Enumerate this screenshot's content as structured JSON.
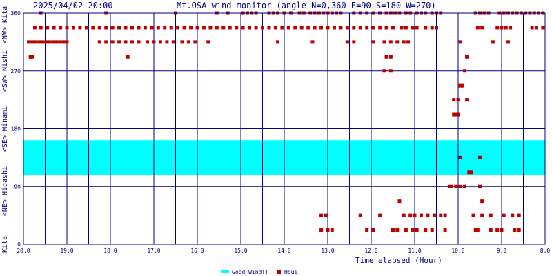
{
  "chart_data": {
    "type": "scatter",
    "title": "2025/04/02 20:00",
    "subtitle": "Mt.OSA wind monitor (angle N=0,360 E=90 S=180 W=270)",
    "xlabel": "Time elapsed (Hour)",
    "ylabel": "",
    "xlim": [
      20,
      8
    ],
    "ylim": [
      0,
      360
    ],
    "x_ticks": [
      "20:0",
      "19:0",
      "18:0",
      "17:0",
      "16:0",
      "15:0",
      "14:0",
      "13:0",
      "12:0",
      "11:0",
      "10:0",
      "9:0",
      "8:0"
    ],
    "y_ticks": [
      "0",
      "90",
      "180",
      "270",
      "360"
    ],
    "y_band_labels": [
      "Kita",
      "<NE> Higashi",
      "<SE> Minami",
      "<SW> Nishi",
      "<NW> Kita"
    ],
    "grid": true,
    "legend_position": "bottom-center",
    "colors": {
      "good_wind": "#00ffff",
      "houi": "#bb0000",
      "axis": "#000080",
      "text": "#000080"
    },
    "good_wind_band": [
      108,
      162
    ],
    "series": [
      {
        "name": "Good Wind!!",
        "kind": "band"
      },
      {
        "name": "Houi",
        "kind": "points",
        "points": [
          [
            19.88,
            315
          ],
          [
            19.8,
            315
          ],
          [
            19.72,
            315
          ],
          [
            19.64,
            315
          ],
          [
            19.56,
            315
          ],
          [
            19.48,
            315
          ],
          [
            19.4,
            315
          ],
          [
            19.32,
            315
          ],
          [
            19.24,
            315
          ],
          [
            19.16,
            315
          ],
          [
            19.08,
            315
          ],
          [
            19.0,
            315
          ],
          [
            19.84,
            292
          ],
          [
            19.8,
            292
          ],
          [
            19.74,
            337.5
          ],
          [
            19.6,
            337.5
          ],
          [
            19.45,
            337.5
          ],
          [
            19.3,
            337.5
          ],
          [
            19.15,
            337.5
          ],
          [
            19.0,
            337.5
          ],
          [
            18.85,
            337.5
          ],
          [
            18.7,
            337.5
          ],
          [
            18.55,
            337.5
          ],
          [
            18.4,
            337.5
          ],
          [
            18.25,
            337.5
          ],
          [
            18.1,
            337.5
          ],
          [
            17.95,
            337.5
          ],
          [
            17.8,
            337.5
          ],
          [
            17.65,
            337.5
          ],
          [
            17.5,
            337.5
          ],
          [
            17.35,
            337.5
          ],
          [
            17.2,
            337.5
          ],
          [
            17.05,
            337.5
          ],
          [
            16.9,
            337.5
          ],
          [
            16.75,
            337.5
          ],
          [
            16.6,
            337.5
          ],
          [
            16.45,
            337.5
          ],
          [
            16.3,
            337.5
          ],
          [
            16.15,
            337.5
          ],
          [
            16.0,
            337.5
          ],
          [
            15.85,
            337.5
          ],
          [
            15.7,
            337.5
          ],
          [
            15.55,
            337.5
          ],
          [
            15.4,
            337.5
          ],
          [
            15.25,
            337.5
          ],
          [
            15.1,
            337.5
          ],
          [
            14.95,
            337.5
          ],
          [
            14.8,
            337.5
          ],
          [
            14.65,
            337.5
          ],
          [
            14.5,
            337.5
          ],
          [
            14.35,
            337.5
          ],
          [
            14.2,
            337.5
          ],
          [
            14.05,
            337.5
          ],
          [
            13.9,
            337.5
          ],
          [
            13.75,
            337.5
          ],
          [
            13.6,
            337.5
          ],
          [
            13.45,
            337.5
          ],
          [
            13.3,
            337.5
          ],
          [
            13.15,
            337.5
          ],
          [
            13.0,
            337.5
          ],
          [
            12.85,
            337.5
          ],
          [
            12.7,
            337.5
          ],
          [
            12.55,
            337.5
          ],
          [
            12.4,
            337.5
          ],
          [
            12.25,
            337.5
          ],
          [
            12.1,
            337.5
          ],
          [
            11.95,
            337.5
          ],
          [
            11.8,
            337.5
          ],
          [
            11.65,
            337.5
          ],
          [
            11.5,
            337.5
          ],
          [
            11.3,
            337.5
          ],
          [
            11.2,
            337.5
          ],
          [
            11.05,
            337.5
          ],
          [
            10.95,
            337.5
          ],
          [
            10.75,
            337.5
          ],
          [
            10.6,
            337.5
          ],
          [
            10.5,
            337.5
          ],
          [
            9.55,
            337.5
          ],
          [
            9.45,
            337.5
          ],
          [
            9.1,
            337.5
          ],
          [
            9.0,
            337.5
          ],
          [
            8.9,
            337.5
          ],
          [
            8.8,
            337.5
          ],
          [
            8.3,
            337.5
          ],
          [
            8.2,
            337.5
          ],
          [
            8.05,
            337.5
          ],
          [
            19.6,
            360
          ],
          [
            18.1,
            360
          ],
          [
            16.5,
            360
          ],
          [
            15.55,
            360
          ],
          [
            15.3,
            360
          ],
          [
            14.95,
            360
          ],
          [
            14.85,
            360
          ],
          [
            14.75,
            360
          ],
          [
            14.65,
            360
          ],
          [
            14.35,
            360
          ],
          [
            14.25,
            360
          ],
          [
            14.15,
            360
          ],
          [
            14.0,
            360
          ],
          [
            13.85,
            360
          ],
          [
            13.65,
            360
          ],
          [
            13.55,
            360
          ],
          [
            13.4,
            360
          ],
          [
            13.3,
            360
          ],
          [
            13.2,
            360
          ],
          [
            13.1,
            360
          ],
          [
            13.0,
            360
          ],
          [
            12.9,
            360
          ],
          [
            12.8,
            360
          ],
          [
            12.7,
            360
          ],
          [
            12.4,
            360
          ],
          [
            12.25,
            360
          ],
          [
            12.1,
            360
          ],
          [
            11.95,
            360
          ],
          [
            11.8,
            360
          ],
          [
            11.65,
            360
          ],
          [
            11.55,
            360
          ],
          [
            11.45,
            360
          ],
          [
            11.35,
            360
          ],
          [
            11.2,
            360
          ],
          [
            11.1,
            360
          ],
          [
            10.95,
            360
          ],
          [
            10.85,
            360
          ],
          [
            10.75,
            360
          ],
          [
            10.6,
            360
          ],
          [
            10.5,
            360
          ],
          [
            10.4,
            360
          ],
          [
            9.6,
            360
          ],
          [
            9.5,
            360
          ],
          [
            9.4,
            360
          ],
          [
            9.3,
            360
          ],
          [
            9.05,
            360
          ],
          [
            8.95,
            360
          ],
          [
            8.85,
            360
          ],
          [
            8.75,
            360
          ],
          [
            8.65,
            360
          ],
          [
            8.55,
            360
          ],
          [
            8.45,
            360
          ],
          [
            8.35,
            360
          ],
          [
            8.25,
            360
          ],
          [
            8.15,
            360
          ],
          [
            8.05,
            360
          ],
          [
            18.25,
            315
          ],
          [
            18.1,
            315
          ],
          [
            17.95,
            315
          ],
          [
            17.8,
            315
          ],
          [
            17.65,
            315
          ],
          [
            17.5,
            315
          ],
          [
            17.35,
            315
          ],
          [
            17.15,
            315
          ],
          [
            17.0,
            315
          ],
          [
            16.85,
            315
          ],
          [
            16.7,
            315
          ],
          [
            16.55,
            315
          ],
          [
            16.35,
            315
          ],
          [
            16.2,
            315
          ],
          [
            16.05,
            315
          ],
          [
            15.75,
            315
          ],
          [
            14.15,
            315
          ],
          [
            13.35,
            315
          ],
          [
            12.55,
            315
          ],
          [
            12.4,
            315
          ],
          [
            11.95,
            315
          ],
          [
            11.7,
            315
          ],
          [
            11.55,
            315
          ],
          [
            11.4,
            315
          ],
          [
            11.25,
            315
          ],
          [
            11.15,
            315
          ],
          [
            9.95,
            315
          ],
          [
            9.2,
            315
          ],
          [
            8.85,
            315
          ],
          [
            17.6,
            292
          ],
          [
            11.65,
            292
          ],
          [
            11.55,
            292
          ],
          [
            9.8,
            292
          ],
          [
            11.7,
            270
          ],
          [
            11.55,
            270
          ],
          [
            9.85,
            270
          ],
          [
            9.95,
            247
          ],
          [
            9.9,
            247
          ],
          [
            10.1,
            225
          ],
          [
            10.0,
            225
          ],
          [
            9.8,
            225
          ],
          [
            10.1,
            202
          ],
          [
            10.05,
            202
          ],
          [
            10.0,
            202
          ],
          [
            9.95,
            135
          ],
          [
            9.5,
            135
          ],
          [
            9.75,
            112
          ],
          [
            9.7,
            112
          ],
          [
            10.2,
            90
          ],
          [
            10.15,
            90
          ],
          [
            10.05,
            90
          ],
          [
            9.95,
            90
          ],
          [
            9.85,
            90
          ],
          [
            9.5,
            90
          ],
          [
            11.35,
            67
          ],
          [
            9.45,
            67
          ],
          [
            13.15,
            45
          ],
          [
            13.05,
            45
          ],
          [
            12.25,
            45
          ],
          [
            11.8,
            45
          ],
          [
            11.25,
            45
          ],
          [
            11.1,
            45
          ],
          [
            11.0,
            45
          ],
          [
            10.85,
            45
          ],
          [
            10.7,
            45
          ],
          [
            10.55,
            45
          ],
          [
            10.4,
            45
          ],
          [
            10.3,
            45
          ],
          [
            9.65,
            45
          ],
          [
            9.45,
            45
          ],
          [
            9.25,
            45
          ],
          [
            8.95,
            45
          ],
          [
            8.75,
            45
          ],
          [
            8.6,
            45
          ],
          [
            13.15,
            22
          ],
          [
            13.0,
            22
          ],
          [
            12.9,
            22
          ],
          [
            12.1,
            22
          ],
          [
            11.95,
            22
          ],
          [
            11.5,
            22
          ],
          [
            11.4,
            22
          ],
          [
            11.2,
            22
          ],
          [
            11.05,
            22
          ],
          [
            10.95,
            22
          ],
          [
            10.75,
            22
          ],
          [
            10.6,
            22
          ],
          [
            10.3,
            22
          ],
          [
            9.6,
            22
          ],
          [
            9.55,
            22
          ],
          [
            9.25,
            22
          ],
          [
            9.1,
            22
          ],
          [
            9.0,
            22
          ],
          [
            8.7,
            22
          ],
          [
            8.6,
            22
          ]
        ]
      }
    ]
  }
}
